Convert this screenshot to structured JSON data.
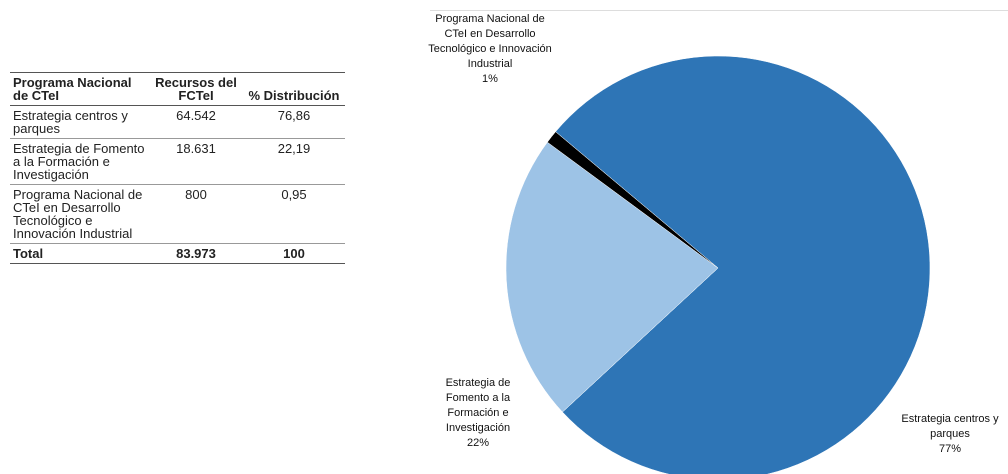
{
  "table": {
    "header": [
      "Programa Nacional de CTeI",
      "Recursos del FCTeI",
      "% Distribución"
    ],
    "rows": [
      [
        "Estrategia centros y parques",
        "64.542",
        "76,86"
      ],
      [
        "Estrategia de Fomento a la Formación e Investigación",
        "18.631",
        "22,19"
      ],
      [
        "Programa Nacional de CTeI en Desarrollo Tecnológico e Innovación Industrial",
        "800",
        "0,95"
      ]
    ],
    "total": [
      "Total",
      "83.973",
      "100"
    ]
  },
  "chart_data": {
    "type": "pie",
    "categories": [
      "Estrategia centros y parques",
      "Estrategia de Fomento a la Formación e Investigación",
      "Programa Nacional de CTeI en Desarrollo Tecnológico e Innovación Industrial"
    ],
    "values": [
      77,
      22,
      1
    ],
    "value_labels": [
      "77%",
      "22%",
      "1%"
    ],
    "colors": [
      "#2e75b6",
      "#9dc3e6",
      "#000000"
    ]
  }
}
